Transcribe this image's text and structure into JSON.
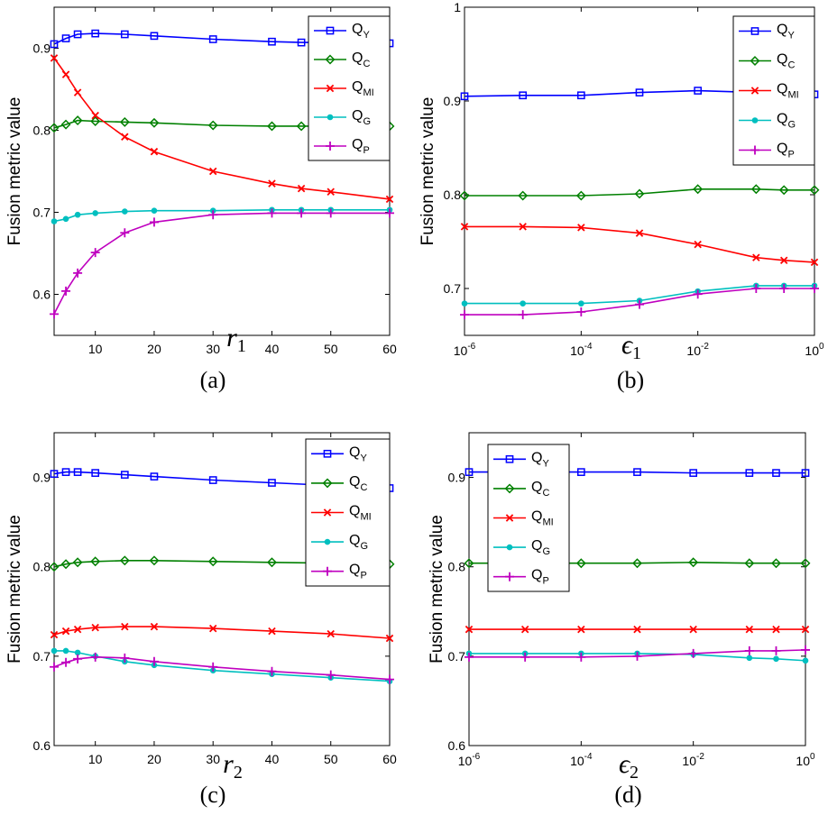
{
  "figure": {
    "colors": {
      "QY": "#0000ff",
      "QC": "#008000",
      "QMI": "#ff0000",
      "QG": "#00bfbf",
      "QP": "#bf00bf"
    }
  },
  "chart_data": [
    {
      "panel": "a",
      "type": "line",
      "caption": "(a)",
      "xscale": "linear",
      "xlim": [
        3,
        60
      ],
      "ylim": [
        0.55,
        0.95
      ],
      "xticks": [
        10,
        20,
        30,
        40,
        50,
        60
      ],
      "yticks": [
        0.6,
        0.7,
        0.8,
        0.9
      ],
      "ylabel": "Fusion metric value",
      "xlabel_main": "r",
      "xlabel_sub": "1",
      "legend_position": "top-right",
      "grid": false,
      "x": [
        3,
        5,
        7,
        10,
        15,
        20,
        30,
        40,
        45,
        50,
        60
      ],
      "series": [
        {
          "key": "QY",
          "name_main": "Q",
          "name_sub": "Y",
          "marker": "square",
          "values": [
            0.905,
            0.912,
            0.917,
            0.918,
            0.917,
            0.915,
            0.911,
            0.908,
            0.907,
            0.907,
            0.906
          ]
        },
        {
          "key": "QC",
          "name_main": "Q",
          "name_sub": "C",
          "marker": "diamond",
          "values": [
            0.803,
            0.807,
            0.812,
            0.811,
            0.81,
            0.809,
            0.806,
            0.805,
            0.805,
            0.805,
            0.805
          ]
        },
        {
          "key": "QMI",
          "name_main": "Q",
          "name_sub": "MI",
          "marker": "x",
          "values": [
            0.888,
            0.868,
            0.846,
            0.818,
            0.792,
            0.774,
            0.75,
            0.735,
            0.729,
            0.725,
            0.716
          ]
        },
        {
          "key": "QG",
          "name_main": "Q",
          "name_sub": "G",
          "marker": "dot",
          "values": [
            0.689,
            0.692,
            0.697,
            0.699,
            0.701,
            0.702,
            0.702,
            0.703,
            0.703,
            0.703,
            0.703
          ]
        },
        {
          "key": "QP",
          "name_main": "Q",
          "name_sub": "P",
          "marker": "plus",
          "values": [
            0.576,
            0.604,
            0.626,
            0.651,
            0.675,
            0.688,
            0.697,
            0.699,
            0.699,
            0.699,
            0.699
          ]
        }
      ]
    },
    {
      "panel": "b",
      "type": "line",
      "caption": "(b)",
      "xscale": "log",
      "xlim": [
        1e-06,
        1
      ],
      "ylim": [
        0.65,
        1.0
      ],
      "xticks": [
        1e-06,
        0.0001,
        0.01,
        1
      ],
      "xtick_labels": [
        {
          "base": "10",
          "exp": "-6"
        },
        {
          "base": "10",
          "exp": "-4"
        },
        {
          "base": "10",
          "exp": "-2"
        },
        {
          "base": "10",
          "exp": "0"
        }
      ],
      "yticks": [
        0.7,
        0.8,
        0.9,
        1.0
      ],
      "ytick_labels": [
        "0.7",
        "0.8",
        "0.9",
        "1"
      ],
      "ylabel": "Fusion metric value",
      "xlabel_main": "ϵ",
      "xlabel_sub": "1",
      "legend_position": "top-right",
      "grid": false,
      "x": [
        1e-06,
        1e-05,
        0.0001,
        0.001,
        0.01,
        0.1,
        0.3,
        1
      ],
      "series": [
        {
          "key": "QY",
          "name_main": "Q",
          "name_sub": "Y",
          "marker": "square",
          "values": [
            0.905,
            0.906,
            0.906,
            0.909,
            0.911,
            0.909,
            0.907,
            0.907
          ]
        },
        {
          "key": "QC",
          "name_main": "Q",
          "name_sub": "C",
          "marker": "diamond",
          "values": [
            0.799,
            0.799,
            0.799,
            0.801,
            0.806,
            0.806,
            0.805,
            0.805
          ]
        },
        {
          "key": "QMI",
          "name_main": "Q",
          "name_sub": "MI",
          "marker": "x",
          "values": [
            0.766,
            0.766,
            0.765,
            0.759,
            0.747,
            0.733,
            0.73,
            0.728
          ]
        },
        {
          "key": "QG",
          "name_main": "Q",
          "name_sub": "G",
          "marker": "dot",
          "values": [
            0.684,
            0.684,
            0.684,
            0.687,
            0.697,
            0.703,
            0.703,
            0.703
          ]
        },
        {
          "key": "QP",
          "name_main": "Q",
          "name_sub": "P",
          "marker": "plus",
          "values": [
            0.672,
            0.672,
            0.675,
            0.683,
            0.694,
            0.7,
            0.7,
            0.7
          ]
        }
      ]
    },
    {
      "panel": "c",
      "type": "line",
      "caption": "(c)",
      "xscale": "linear",
      "xlim": [
        3,
        60
      ],
      "ylim": [
        0.6,
        0.95
      ],
      "xticks": [
        10,
        20,
        30,
        40,
        50,
        60
      ],
      "yticks": [
        0.6,
        0.7,
        0.8,
        0.9
      ],
      "ylabel": "Fusion metric value",
      "xlabel_main": "r",
      "xlabel_sub": "2",
      "legend_position": "top-right",
      "grid": false,
      "x": [
        3,
        5,
        7,
        10,
        15,
        20,
        30,
        40,
        50,
        60
      ],
      "series": [
        {
          "key": "QY",
          "name_main": "Q",
          "name_sub": "Y",
          "marker": "square",
          "values": [
            0.904,
            0.906,
            0.906,
            0.905,
            0.903,
            0.901,
            0.897,
            0.894,
            0.891,
            0.888
          ]
        },
        {
          "key": "QC",
          "name_main": "Q",
          "name_sub": "C",
          "marker": "diamond",
          "values": [
            0.8,
            0.803,
            0.805,
            0.806,
            0.807,
            0.807,
            0.806,
            0.805,
            0.804,
            0.803
          ]
        },
        {
          "key": "QMI",
          "name_main": "Q",
          "name_sub": "MI",
          "marker": "x",
          "values": [
            0.724,
            0.728,
            0.73,
            0.732,
            0.733,
            0.733,
            0.731,
            0.728,
            0.725,
            0.72
          ]
        },
        {
          "key": "QG",
          "name_main": "Q",
          "name_sub": "G",
          "marker": "dot",
          "values": [
            0.706,
            0.706,
            0.704,
            0.7,
            0.694,
            0.69,
            0.684,
            0.68,
            0.676,
            0.672
          ]
        },
        {
          "key": "QP",
          "name_main": "Q",
          "name_sub": "P",
          "marker": "plus",
          "values": [
            0.688,
            0.693,
            0.697,
            0.699,
            0.698,
            0.694,
            0.688,
            0.683,
            0.679,
            0.674
          ]
        }
      ]
    },
    {
      "panel": "d",
      "type": "line",
      "caption": "(d)",
      "xscale": "log",
      "xlim": [
        1e-06,
        1
      ],
      "ylim": [
        0.6,
        0.95
      ],
      "xticks": [
        1e-06,
        0.0001,
        0.01,
        1
      ],
      "xtick_labels": [
        {
          "base": "10",
          "exp": "-6"
        },
        {
          "base": "10",
          "exp": "-4"
        },
        {
          "base": "10",
          "exp": "-2"
        },
        {
          "base": "10",
          "exp": "0"
        }
      ],
      "yticks": [
        0.6,
        0.7,
        0.8,
        0.9
      ],
      "ylabel": "Fusion metric value",
      "xlabel_main": "ϵ",
      "xlabel_sub": "2",
      "legend_position": "top-left",
      "grid": false,
      "x": [
        1e-06,
        1e-05,
        0.0001,
        0.001,
        0.01,
        0.1,
        0.3,
        1
      ],
      "series": [
        {
          "key": "QY",
          "name_main": "Q",
          "name_sub": "Y",
          "marker": "square",
          "values": [
            0.906,
            0.906,
            0.906,
            0.906,
            0.905,
            0.905,
            0.905,
            0.905
          ]
        },
        {
          "key": "QC",
          "name_main": "Q",
          "name_sub": "C",
          "marker": "diamond",
          "values": [
            0.804,
            0.804,
            0.804,
            0.804,
            0.805,
            0.804,
            0.804,
            0.804
          ]
        },
        {
          "key": "QMI",
          "name_main": "Q",
          "name_sub": "MI",
          "marker": "x",
          "values": [
            0.73,
            0.73,
            0.73,
            0.73,
            0.73,
            0.73,
            0.73,
            0.73
          ]
        },
        {
          "key": "QG",
          "name_main": "Q",
          "name_sub": "G",
          "marker": "dot",
          "values": [
            0.703,
            0.703,
            0.703,
            0.703,
            0.702,
            0.698,
            0.697,
            0.695
          ]
        },
        {
          "key": "QP",
          "name_main": "Q",
          "name_sub": "P",
          "marker": "plus",
          "values": [
            0.699,
            0.699,
            0.699,
            0.7,
            0.703,
            0.706,
            0.706,
            0.707
          ]
        }
      ]
    }
  ]
}
